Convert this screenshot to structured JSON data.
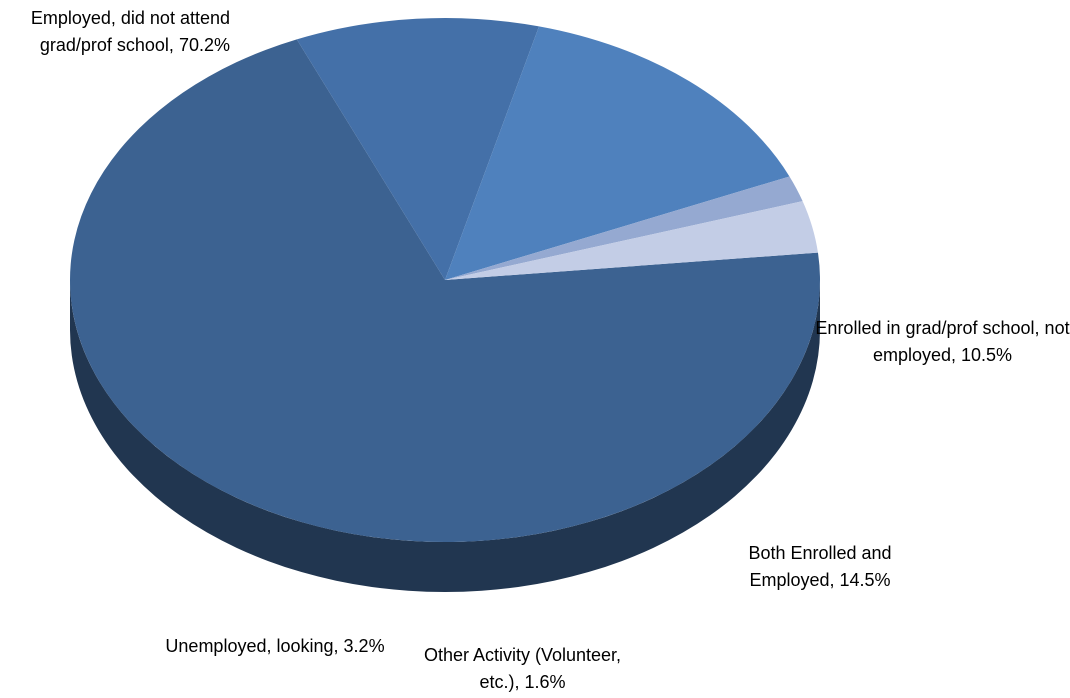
{
  "chart_data": {
    "type": "pie3d",
    "categories": [
      "Employed, did not attend grad/prof school,",
      "Enrolled in grad/prof school, not employed,",
      "Both Enrolled and Employed,",
      "Other Activity (Volunteer, etc.),",
      "Unemployed, looking,"
    ],
    "values": [
      70.2,
      10.5,
      14.5,
      1.6,
      3.2
    ],
    "value_labels": [
      "70.2%",
      "10.5%",
      "14.5%",
      "1.6%",
      "3.2%"
    ],
    "colors": [
      "#3c6291",
      "#4470a8",
      "#4f81bd",
      "#95a9d1",
      "#c3cde6"
    ]
  }
}
